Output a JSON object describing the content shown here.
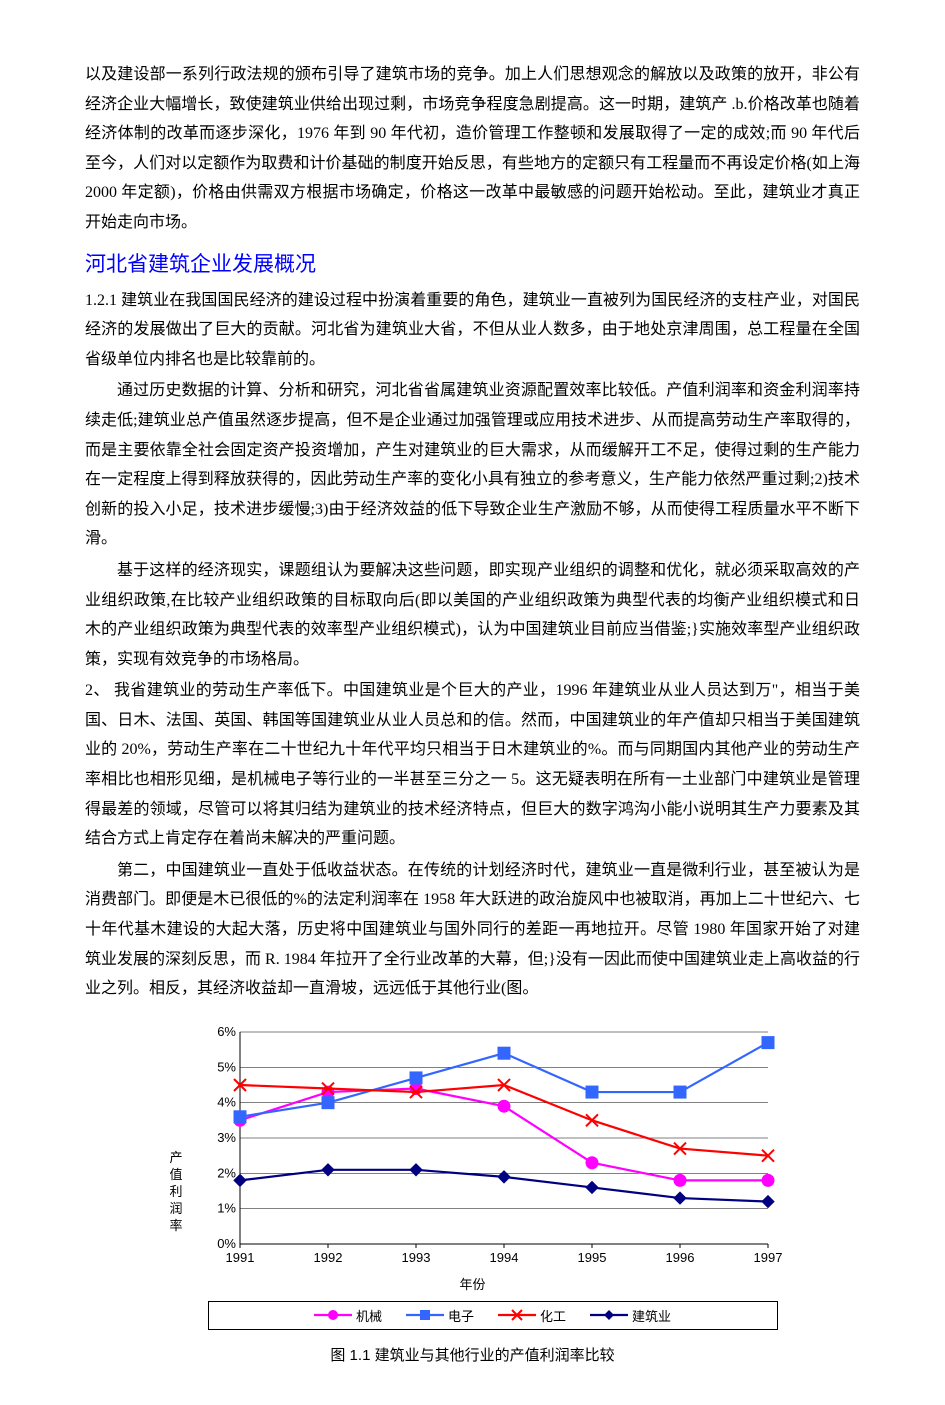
{
  "paragraphs": {
    "p1": "以及建设部一系列行政法规的颁布引导了建筑市场的竞争。加上人们思想观念的解放以及政策的放开，非公有经济企业大幅增长，致使建筑业供给出现过剩，市场竞争程度急剧提高。这一时期，建筑产 .b.价格改革也随着经济体制的改革而逐步深化，1976 年到 90 年代初，造价管理工作整顿和发展取得了一定的成效;而 90 年代后至今，人们对以定额作为取费和计价基础的制度开始反思，有些地方的定额只有工程量而不再设定价格(如上海 2000 年定额)，价格由供需双方根据市场确定，价格这一改革中最敏感的问题开始松动。至此，建筑业才真正开始走向市场。",
    "heading": "河北省建筑企业发展概况",
    "p2": "1.2.1 建筑业在我国国民经济的建设过程中扮演着重要的角色，建筑业一直被列为国民经济的支柱产业，对国民经济的发展做出了巨大的贡献。河北省为建筑业大省，不但从业人数多，由于地处京津周围，总工程量在全国省级单位内排名也是比较靠前的。",
    "p3": "通过历史数据的计算、分析和研究，河北省省属建筑业资源配置效率比较低。产值利润率和资金利润率持续走低;建筑业总产值虽然逐步提高，但不是企业通过加强管理或应用技术进步、从而提高劳动生产率取得的，而是主要依靠全社会固定资产投资增加，产生对建筑业的巨大需求，从而缓解开工不足，使得过剩的生产能力在一定程度上得到释放获得的，因此劳动生产率的变化小具有独立的参考意义，生产能力依然严重过剩;2)技术创新的投入小足，技术进步缓慢;3)由于经济效益的低下导致企业生产激励不够，从而使得工程质量水平不断下滑。",
    "p4": "基于这样的经济现实，课题组认为要解决这些问题，即实现产业组织的调整和优化，就必须采取高效的产业组织政策,在比较产业组织政策的目标取向后(即以美国的产业组织政策为典型代表的均衡产业组织模式和日木的产业组织政策为典型代表的效率型产业组织模式)，认为中国建筑业目前应当借鉴;}实施效率型产业组织政策，实现有效竞争的市场格局。",
    "p5": "2、        我省建筑业的劳动生产率低下。中国建筑业是个巨大的产业，1996 年建筑业从业人员达到万\"，相当于美国、日木、法国、英国、韩国等国建筑业从业人员总和的信。然而，中国建筑业的年产值却只相当于美国建筑业的 20%，劳动生产率在二十世纪九十年代平均只相当于日木建筑业的%。而与同期国内其他产业的劳动生产率相比也相形见细，是机械电子等行业的一半甚至三分之一 5。这无疑表明在所有一土业部门中建筑业是管理得最差的领域，尽管可以将其归结为建筑业的技术经济特点，但巨大的数字鸿沟小能小说明其生产力要素及其结合方式上肯定存在着尚未解决的严重问题。",
    "p6": "第二，中国建筑业一直处于低收益状态。在传统的计划经济时代，建筑业一直是微利行业，甚至被认为是消费部门。即便是木已很低的%的法定利润率在 1958 年大跃进的政治旋风中也被取消，再加上二十世纪六、七十年代基木建设的大起大落，历史将中国建筑业与国外同行的差距一再地拉开。尽管 1980 年国家开始了对建筑业发展的深刻反思，而 R. 1984 年拉开了全行业改革的大幕，但;}没有一因此而使中国建筑业走上高收益的行业之列。相反，其经济收益却一直滑坡，远远低于其他行业(图。"
  },
  "chart": {
    "type": "line",
    "y_axis_title": "产值利润率",
    "x_axis_title": "年份",
    "caption": "图 1.1  建筑业与其他行业的产值利润率比较",
    "x_categories": [
      "1991",
      "1992",
      "1993",
      "1994",
      "1995",
      "1996",
      "1997"
    ],
    "y_ticks": [
      "0%",
      "1%",
      "2%",
      "3%",
      "4%",
      "5%",
      "6%"
    ],
    "ylim": [
      0,
      6
    ],
    "plot_bg": "#ffffff",
    "grid_color": "#000000",
    "grid_width": 0.5,
    "axis_color": "#000000",
    "tick_fontsize": 13,
    "label_fontsize": 13,
    "caption_fontsize": 15,
    "legend_fontsize": 13,
    "line_width": 2.2,
    "marker_size": 6,
    "series": [
      {
        "name": "机械",
        "color": "#ff00ff",
        "marker": "circle",
        "values": [
          3.5,
          4.3,
          4.4,
          3.9,
          2.3,
          1.8,
          1.8
        ]
      },
      {
        "name": "电子",
        "color": "#3366ff",
        "marker": "square",
        "values": [
          3.6,
          4.0,
          4.7,
          5.4,
          4.3,
          4.3,
          5.7
        ]
      },
      {
        "name": "化工",
        "color": "#ff0000",
        "marker": "x",
        "values": [
          4.5,
          4.4,
          4.3,
          4.5,
          3.5,
          2.7,
          2.5
        ]
      },
      {
        "name": "建筑业",
        "color": "#000080",
        "marker": "diamond",
        "values": [
          1.8,
          2.1,
          2.1,
          1.9,
          1.6,
          1.3,
          1.2
        ]
      }
    ]
  }
}
